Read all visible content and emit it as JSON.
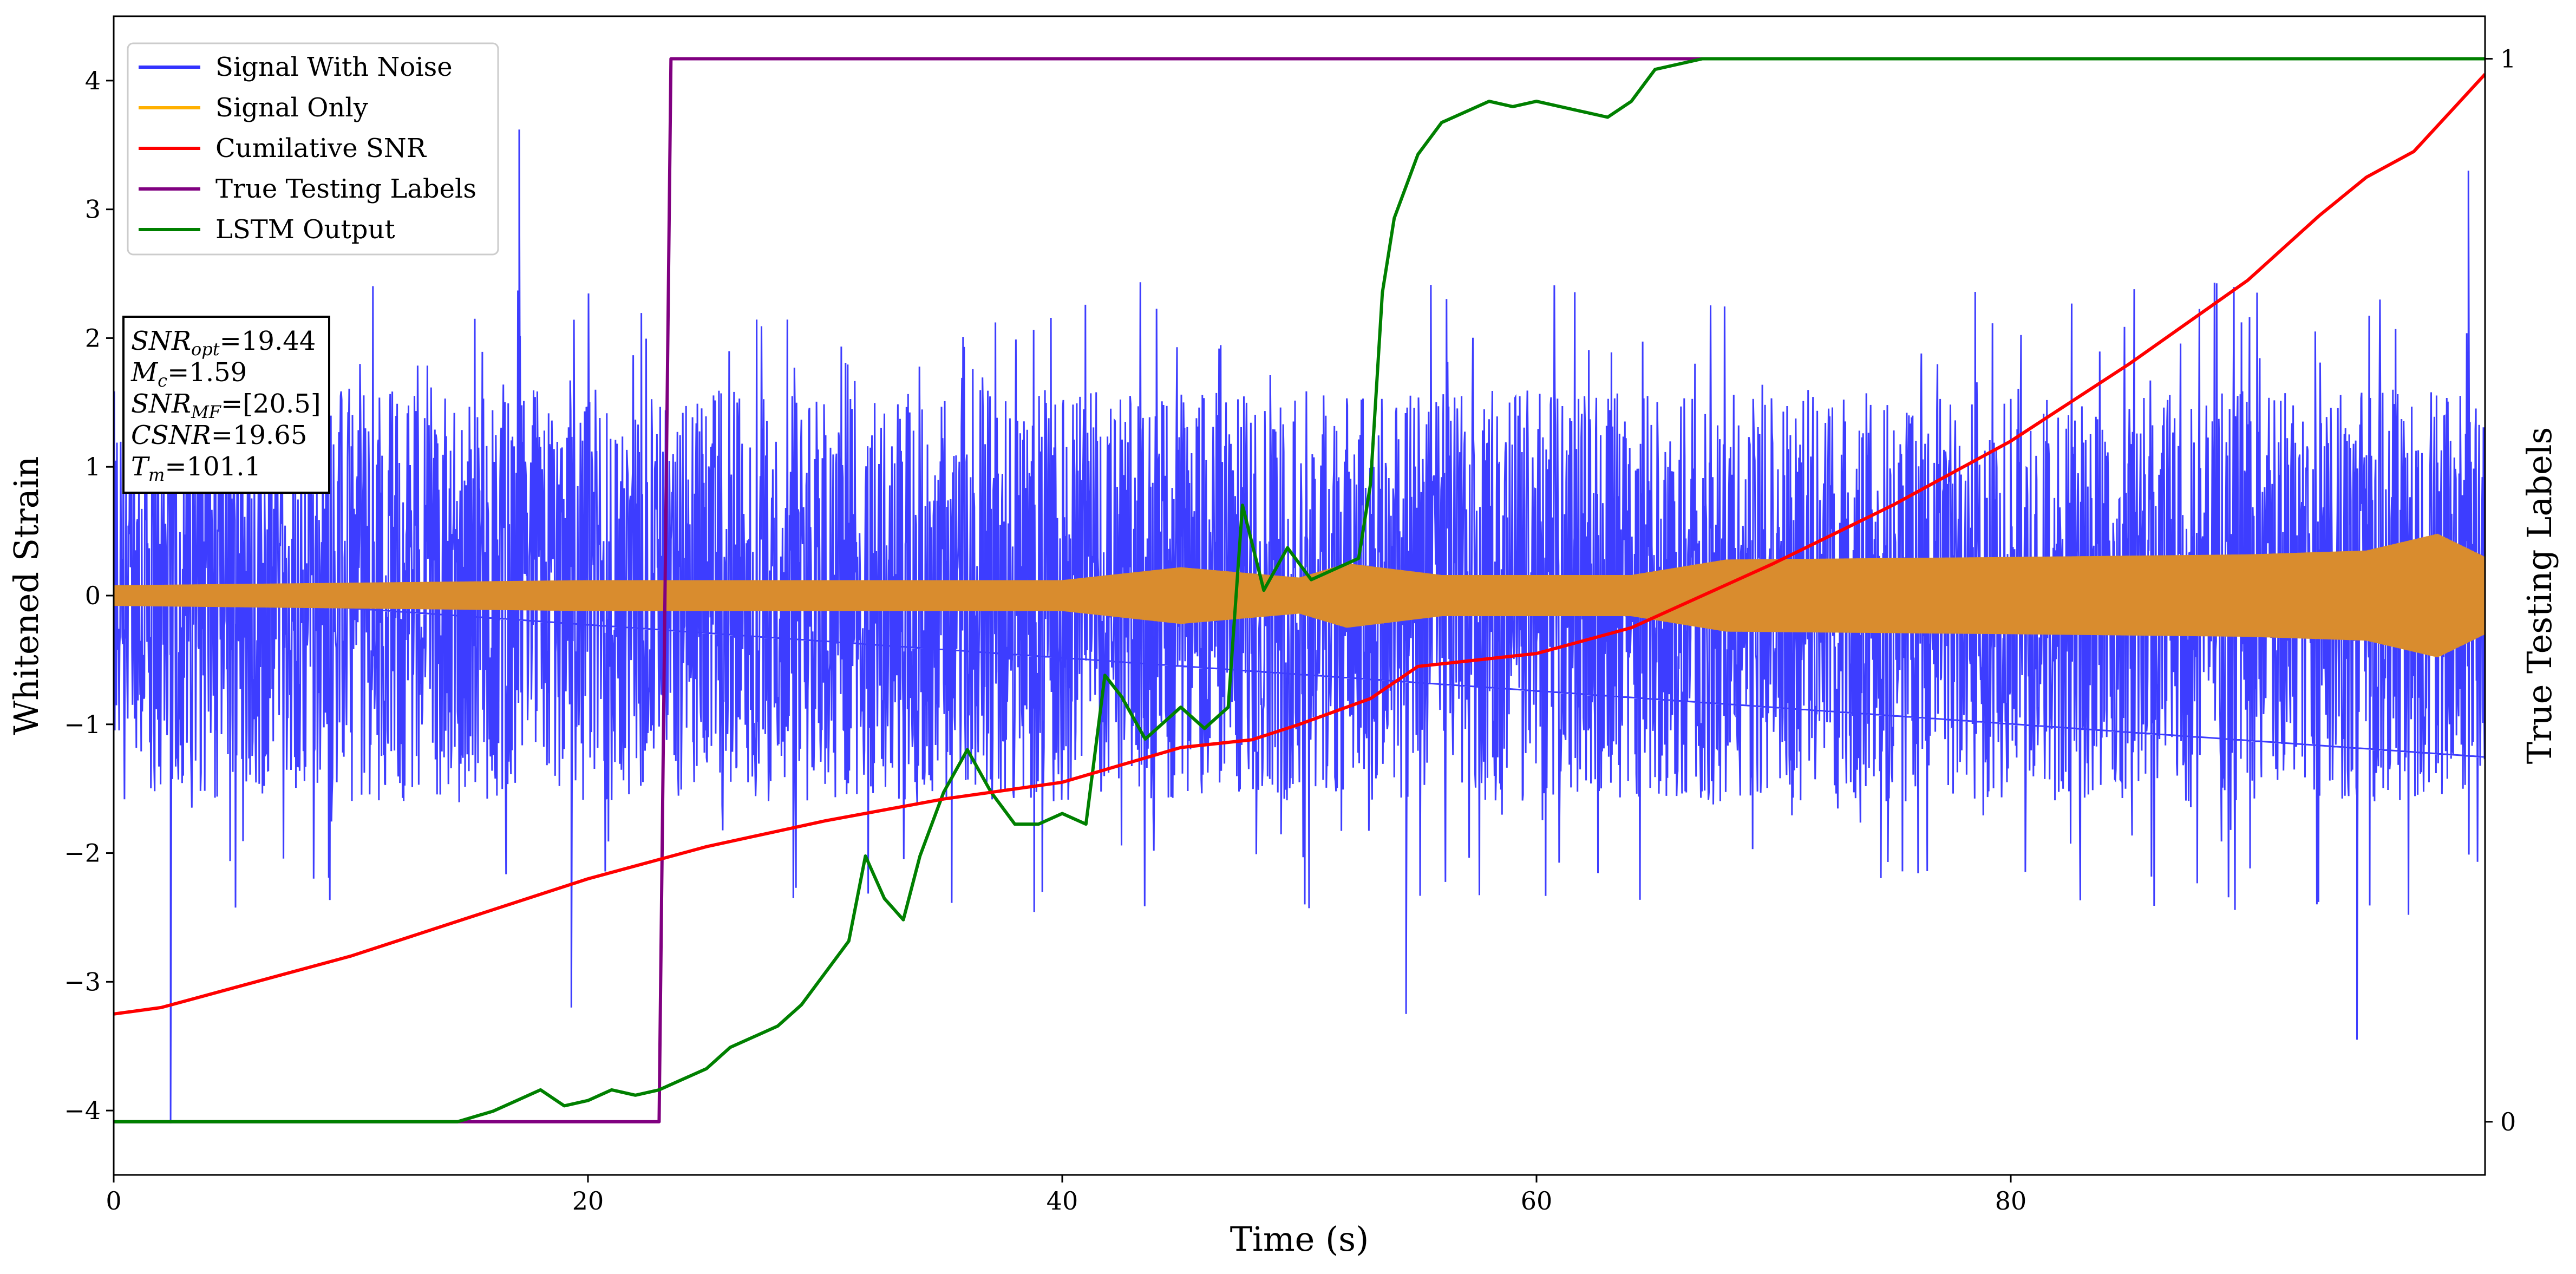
{
  "chart_data": {
    "type": "line",
    "xlabel": "Time (s)",
    "ylabel": "Whitened Strain",
    "y2label": "True Testing Labels",
    "xlim": [
      0,
      100
    ],
    "ylim": [
      -4.5,
      4.5
    ],
    "y2lim": [
      -0.05,
      1.04
    ],
    "x_ticks": [
      0,
      20,
      40,
      60,
      80
    ],
    "y_ticks": [
      -4,
      -3,
      -2,
      -1,
      0,
      1,
      2,
      3,
      4
    ],
    "y2_ticks": [
      0,
      1
    ],
    "legend_position": "upper left",
    "grid": false,
    "series": [
      {
        "name": "Signal With Noise",
        "color": "#3333ff",
        "axis": "left",
        "style": "dense noise",
        "envelope_typical": [
          -1.6,
          1.6
        ],
        "notable_spikes": [
          {
            "x": 2.4,
            "y": -4.1
          },
          {
            "x": 17.1,
            "y": 3.62
          },
          {
            "x": 19.3,
            "y": -3.2
          },
          {
            "x": 54.5,
            "y": -3.25
          },
          {
            "x": 94.6,
            "y": -3.45
          },
          {
            "x": 99.3,
            "y": 3.3
          }
        ]
      },
      {
        "name": "Signal Only",
        "color": "#ffb000",
        "axis": "left",
        "style": "oscillating chirp",
        "amplitude_points": [
          [
            0,
            0.08
          ],
          [
            20,
            0.12
          ],
          [
            40,
            0.12
          ],
          [
            45,
            0.22
          ],
          [
            50,
            0.14
          ],
          [
            52,
            0.25
          ],
          [
            56,
            0.16
          ],
          [
            64,
            0.16
          ],
          [
            68,
            0.28
          ],
          [
            80,
            0.3
          ],
          [
            90,
            0.32
          ],
          [
            95,
            0.35
          ],
          [
            98,
            0.48
          ],
          [
            100,
            0.3
          ]
        ]
      },
      {
        "name": "Cumilative SNR",
        "color": "#ff0000",
        "axis": "left",
        "points": [
          [
            0,
            -3.25
          ],
          [
            2,
            -3.2
          ],
          [
            5,
            -3.05
          ],
          [
            10,
            -2.8
          ],
          [
            15,
            -2.5
          ],
          [
            20,
            -2.2
          ],
          [
            25,
            -1.95
          ],
          [
            30,
            -1.75
          ],
          [
            35,
            -1.58
          ],
          [
            40,
            -1.45
          ],
          [
            45,
            -1.18
          ],
          [
            48,
            -1.12
          ],
          [
            50,
            -1.0
          ],
          [
            53,
            -0.8
          ],
          [
            55,
            -0.55
          ],
          [
            60,
            -0.45
          ],
          [
            64,
            -0.25
          ],
          [
            67,
            0.0
          ],
          [
            70,
            0.25
          ],
          [
            75,
            0.7
          ],
          [
            80,
            1.2
          ],
          [
            85,
            1.8
          ],
          [
            90,
            2.45
          ],
          [
            93,
            2.95
          ],
          [
            95,
            3.25
          ],
          [
            97,
            3.45
          ],
          [
            99,
            3.85
          ],
          [
            100,
            4.05
          ]
        ]
      },
      {
        "name": "True Testing Labels",
        "color": "#800080",
        "axis": "right",
        "points": [
          [
            0,
            0
          ],
          [
            23.0,
            0
          ],
          [
            23.5,
            1.0
          ],
          [
            100,
            1.0
          ]
        ]
      },
      {
        "name": "LSTM Output",
        "color": "#008000",
        "axis": "right",
        "points": [
          [
            0,
            0
          ],
          [
            14.5,
            0.0
          ],
          [
            16,
            0.01
          ],
          [
            17,
            0.02
          ],
          [
            18,
            0.03
          ],
          [
            19,
            0.015
          ],
          [
            20,
            0.02
          ],
          [
            21,
            0.03
          ],
          [
            22,
            0.025
          ],
          [
            23,
            0.03
          ],
          [
            24,
            0.04
          ],
          [
            25,
            0.05
          ],
          [
            26,
            0.07
          ],
          [
            27,
            0.08
          ],
          [
            28,
            0.09
          ],
          [
            29,
            0.11
          ],
          [
            30,
            0.14
          ],
          [
            31,
            0.17
          ],
          [
            31.7,
            0.25
          ],
          [
            32.5,
            0.21
          ],
          [
            33.3,
            0.19
          ],
          [
            34,
            0.25
          ],
          [
            35,
            0.31
          ],
          [
            36,
            0.35
          ],
          [
            37,
            0.31
          ],
          [
            38,
            0.28
          ],
          [
            39,
            0.28
          ],
          [
            40,
            0.29
          ],
          [
            41,
            0.28
          ],
          [
            41.8,
            0.42
          ],
          [
            42.5,
            0.4
          ],
          [
            43.5,
            0.36
          ],
          [
            45,
            0.39
          ],
          [
            46,
            0.37
          ],
          [
            47,
            0.39
          ],
          [
            47.6,
            0.58
          ],
          [
            48.5,
            0.5
          ],
          [
            49.5,
            0.54
          ],
          [
            50.5,
            0.51
          ],
          [
            51.5,
            0.52
          ],
          [
            52.5,
            0.53
          ],
          [
            53,
            0.6
          ],
          [
            53.5,
            0.78
          ],
          [
            54,
            0.85
          ],
          [
            55,
            0.91
          ],
          [
            56,
            0.94
          ],
          [
            57,
            0.95
          ],
          [
            58,
            0.96
          ],
          [
            59,
            0.955
          ],
          [
            60,
            0.96
          ],
          [
            62,
            0.95
          ],
          [
            63,
            0.945
          ],
          [
            64,
            0.96
          ],
          [
            65,
            0.99
          ],
          [
            67,
            1.0
          ],
          [
            100,
            1.0
          ]
        ]
      }
    ],
    "annotation_box": {
      "lines": [
        {
          "label": "SNR",
          "sub": "opt",
          "value": "=19.44"
        },
        {
          "label": "M",
          "sub": "c",
          "value": "=1.59"
        },
        {
          "label": "SNR",
          "sub": "MF",
          "value": "=[20.5]"
        },
        {
          "label": "CSNR",
          "sub": "",
          "value": "=19.65"
        },
        {
          "label": "T",
          "sub": "m",
          "value": "=101.1"
        }
      ]
    }
  }
}
